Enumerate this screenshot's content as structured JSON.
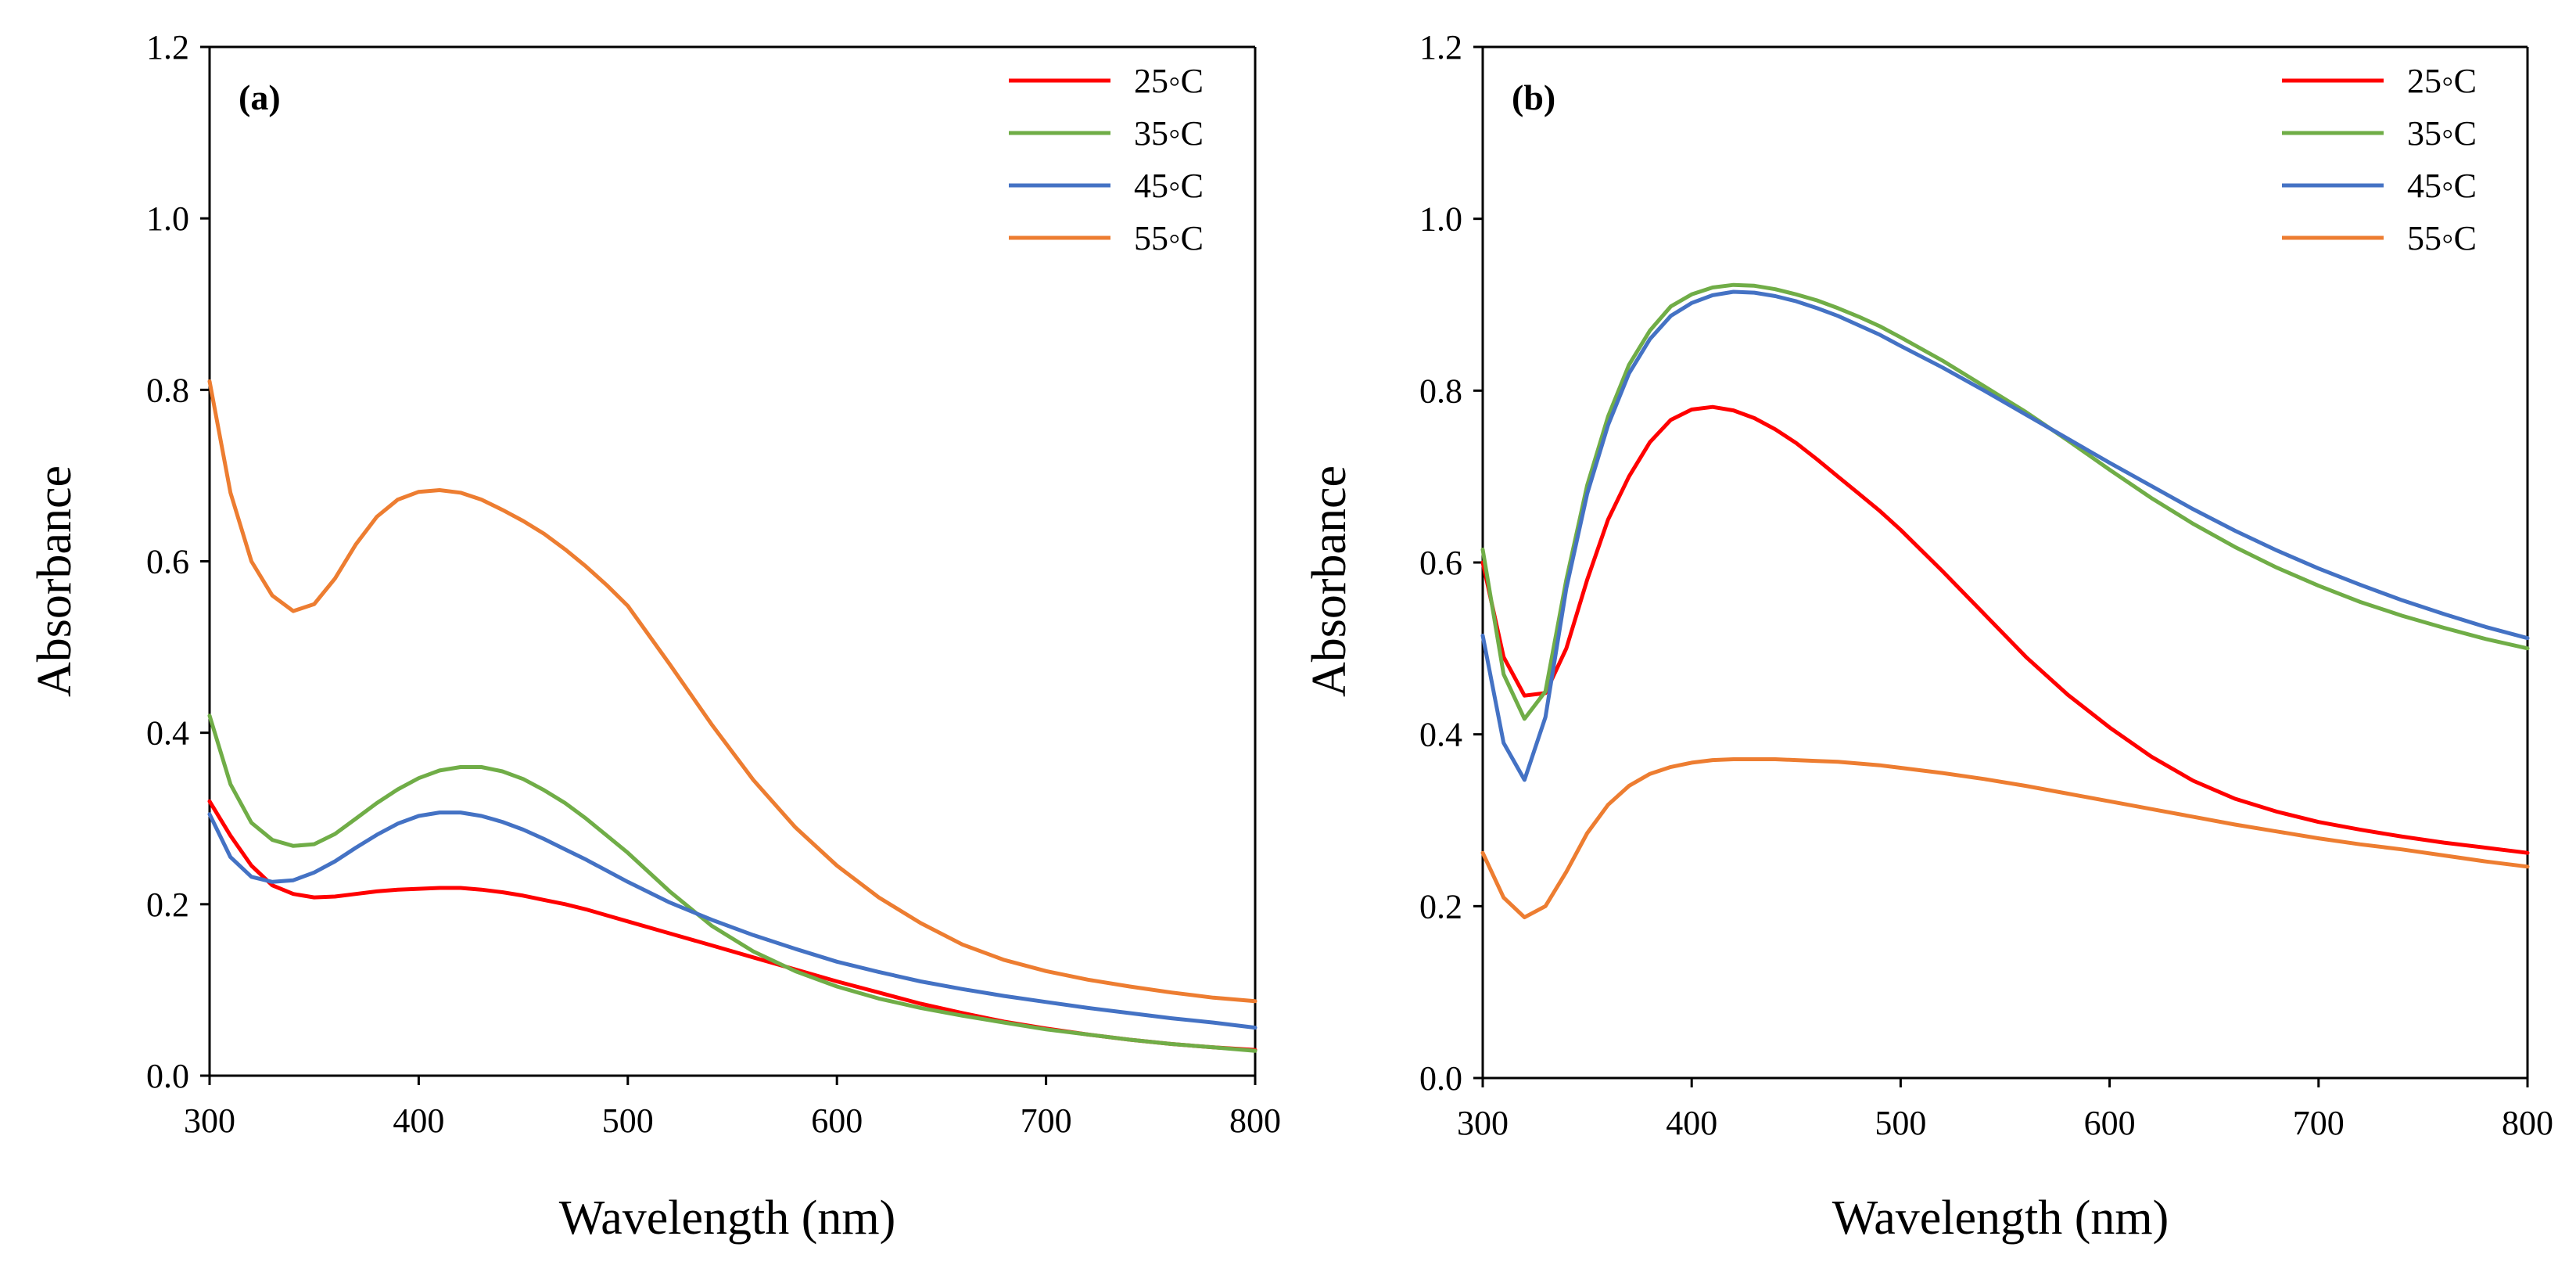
{
  "chart_data": [
    {
      "type": "line",
      "panel_label": "(a)",
      "xlabel": "Wavelength (nm)",
      "ylabel": "Absorbance",
      "xlim": [
        300,
        800
      ],
      "ylim": [
        0,
        1.2
      ],
      "x_ticks": [
        "300",
        "400",
        "500",
        "600",
        "700",
        "800"
      ],
      "y_ticks": [
        "0.0",
        "0.2",
        "0.4",
        "0.6",
        "0.8",
        "1.0",
        "1.2"
      ],
      "grid": false,
      "legend_position": "top-right",
      "x": [
        300,
        310,
        320,
        330,
        340,
        350,
        360,
        370,
        380,
        390,
        400,
        410,
        420,
        430,
        440,
        450,
        460,
        470,
        480,
        490,
        500,
        520,
        540,
        560,
        580,
        600,
        620,
        640,
        660,
        680,
        700,
        720,
        740,
        760,
        780,
        800
      ],
      "series": [
        {
          "name": "25◦C",
          "color": "#ff0000",
          "values": [
            0.32,
            0.28,
            0.245,
            0.222,
            0.212,
            0.208,
            0.209,
            0.212,
            0.215,
            0.217,
            0.218,
            0.219,
            0.219,
            0.217,
            0.214,
            0.21,
            0.205,
            0.2,
            0.194,
            0.187,
            0.18,
            0.166,
            0.152,
            0.138,
            0.124,
            0.11,
            0.097,
            0.084,
            0.073,
            0.063,
            0.055,
            0.048,
            0.042,
            0.037,
            0.033,
            0.03
          ]
        },
        {
          "name": "35◦C",
          "color": "#70ad47",
          "values": [
            0.42,
            0.34,
            0.295,
            0.275,
            0.268,
            0.27,
            0.282,
            0.3,
            0.318,
            0.334,
            0.347,
            0.356,
            0.36,
            0.36,
            0.355,
            0.346,
            0.333,
            0.318,
            0.3,
            0.28,
            0.26,
            0.215,
            0.175,
            0.145,
            0.122,
            0.104,
            0.09,
            0.079,
            0.07,
            0.062,
            0.054,
            0.048,
            0.042,
            0.037,
            0.033,
            0.029
          ]
        },
        {
          "name": "45◦C",
          "color": "#4472c4",
          "values": [
            0.305,
            0.255,
            0.232,
            0.226,
            0.228,
            0.237,
            0.25,
            0.266,
            0.281,
            0.294,
            0.303,
            0.307,
            0.307,
            0.303,
            0.296,
            0.287,
            0.276,
            0.264,
            0.252,
            0.239,
            0.226,
            0.202,
            0.182,
            0.164,
            0.148,
            0.133,
            0.121,
            0.11,
            0.101,
            0.093,
            0.086,
            0.079,
            0.073,
            0.067,
            0.062,
            0.056
          ]
        },
        {
          "name": "55◦C",
          "color": "#ed7d31",
          "values": [
            0.81,
            0.68,
            0.6,
            0.56,
            0.542,
            0.55,
            0.58,
            0.62,
            0.652,
            0.672,
            0.681,
            0.683,
            0.68,
            0.672,
            0.66,
            0.647,
            0.632,
            0.614,
            0.594,
            0.572,
            0.548,
            0.48,
            0.41,
            0.345,
            0.29,
            0.245,
            0.208,
            0.178,
            0.153,
            0.135,
            0.122,
            0.112,
            0.104,
            0.097,
            0.091,
            0.087
          ]
        }
      ]
    },
    {
      "type": "line",
      "panel_label": "(b)",
      "xlabel": "Wavelength (nm)",
      "ylabel": "Absorbance",
      "xlim": [
        300,
        800
      ],
      "ylim": [
        0,
        1.2
      ],
      "x_ticks": [
        "300",
        "400",
        "500",
        "600",
        "700",
        "800"
      ],
      "y_ticks": [
        "0.0",
        "0.2",
        "0.4",
        "0.6",
        "0.8",
        "1.0",
        "1.2"
      ],
      "grid": false,
      "legend_position": "top-right",
      "x": [
        300,
        310,
        320,
        330,
        340,
        350,
        360,
        370,
        380,
        390,
        400,
        410,
        420,
        430,
        440,
        450,
        460,
        470,
        480,
        490,
        500,
        520,
        540,
        560,
        580,
        600,
        620,
        640,
        660,
        680,
        700,
        720,
        740,
        760,
        780,
        800
      ],
      "series": [
        {
          "name": "25◦C",
          "color": "#ff0000",
          "values": [
            0.6,
            0.49,
            0.445,
            0.448,
            0.5,
            0.58,
            0.65,
            0.7,
            0.74,
            0.766,
            0.778,
            0.781,
            0.777,
            0.768,
            0.755,
            0.739,
            0.72,
            0.7,
            0.68,
            0.66,
            0.638,
            0.59,
            0.54,
            0.49,
            0.446,
            0.408,
            0.374,
            0.346,
            0.325,
            0.31,
            0.298,
            0.289,
            0.281,
            0.274,
            0.268,
            0.262
          ]
        },
        {
          "name": "35◦C",
          "color": "#70ad47",
          "values": [
            0.615,
            0.47,
            0.418,
            0.45,
            0.58,
            0.69,
            0.77,
            0.83,
            0.87,
            0.898,
            0.912,
            0.92,
            0.923,
            0.922,
            0.918,
            0.912,
            0.905,
            0.896,
            0.886,
            0.875,
            0.862,
            0.835,
            0.805,
            0.775,
            0.742,
            0.708,
            0.675,
            0.645,
            0.618,
            0.594,
            0.573,
            0.554,
            0.538,
            0.524,
            0.511,
            0.5
          ]
        },
        {
          "name": "45◦C",
          "color": "#4472c4",
          "values": [
            0.515,
            0.39,
            0.347,
            0.42,
            0.57,
            0.68,
            0.76,
            0.82,
            0.86,
            0.887,
            0.902,
            0.911,
            0.915,
            0.914,
            0.91,
            0.904,
            0.896,
            0.887,
            0.876,
            0.865,
            0.852,
            0.827,
            0.8,
            0.772,
            0.744,
            0.716,
            0.689,
            0.662,
            0.637,
            0.614,
            0.593,
            0.574,
            0.556,
            0.54,
            0.525,
            0.512
          ]
        },
        {
          "name": "55◦C",
          "color": "#ed7d31",
          "values": [
            0.262,
            0.21,
            0.187,
            0.2,
            0.24,
            0.285,
            0.318,
            0.34,
            0.354,
            0.362,
            0.367,
            0.37,
            0.371,
            0.371,
            0.371,
            0.37,
            0.369,
            0.368,
            0.366,
            0.364,
            0.361,
            0.355,
            0.348,
            0.34,
            0.331,
            0.322,
            0.313,
            0.304,
            0.295,
            0.287,
            0.279,
            0.272,
            0.266,
            0.259,
            0.252,
            0.246
          ]
        }
      ]
    }
  ]
}
